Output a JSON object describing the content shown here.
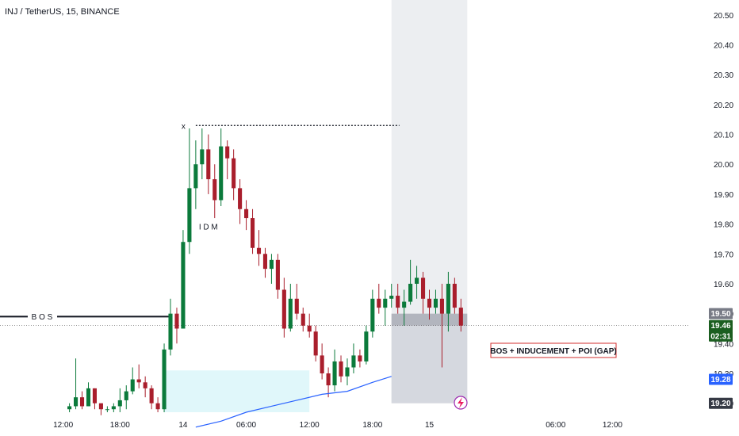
{
  "header": {
    "title": "INJ / TetherUS, 15, BINANCE"
  },
  "chart_data": {
    "type": "candlestick",
    "symbol": "INJ / TetherUS",
    "interval": "15",
    "exchange": "BINANCE",
    "ylim": [
      19.17,
      20.55
    ],
    "yticks": [
      "20.50",
      "20.40",
      "20.30",
      "20.20",
      "20.10",
      "20.00",
      "19.90",
      "19.80",
      "19.70",
      "19.60",
      "19.50",
      "19.40",
      "19.30",
      "19.20"
    ],
    "yticks_values": [
      20.5,
      20.4,
      20.3,
      20.2,
      20.1,
      20.0,
      19.9,
      19.8,
      19.7,
      19.6,
      19.5,
      19.4,
      19.3,
      19.2
    ],
    "xlim": [
      -11,
      98
    ],
    "xticks": [
      {
        "label": "12:00",
        "t": -1
      },
      {
        "label": "18:00",
        "t": 8
      },
      {
        "label": "14",
        "t": 18
      },
      {
        "label": "06:00",
        "t": 28
      },
      {
        "label": "12:00",
        "t": 38
      },
      {
        "label": "18:00",
        "t": 48
      },
      {
        "label": "15",
        "t": 57
      },
      {
        "label": "06:00",
        "t": 77
      },
      {
        "label": "12:00",
        "t": 86
      }
    ],
    "candles": [
      [
        19.18,
        19.2,
        19.17,
        19.19
      ],
      [
        19.19,
        19.35,
        19.18,
        19.22
      ],
      [
        19.22,
        19.24,
        19.18,
        19.19
      ],
      [
        19.19,
        19.27,
        19.19,
        19.25
      ],
      [
        19.25,
        19.25,
        19.18,
        19.2
      ],
      [
        19.2,
        19.2,
        19.16,
        19.18
      ],
      [
        19.18,
        19.19,
        19.17,
        19.18
      ],
      [
        19.18,
        19.2,
        19.17,
        19.19
      ],
      [
        19.19,
        19.25,
        19.17,
        19.21
      ],
      [
        19.21,
        19.26,
        19.18,
        19.24
      ],
      [
        19.24,
        19.32,
        19.23,
        19.28
      ],
      [
        19.28,
        19.33,
        19.25,
        19.27
      ],
      [
        19.27,
        19.29,
        19.22,
        19.25
      ],
      [
        19.25,
        19.26,
        19.18,
        19.2
      ],
      [
        19.2,
        19.22,
        19.17,
        19.18
      ],
      [
        19.18,
        19.4,
        19.17,
        19.38
      ],
      [
        19.38,
        19.55,
        19.36,
        19.5
      ],
      [
        19.5,
        19.52,
        19.4,
        19.45
      ],
      [
        19.45,
        19.78,
        19.45,
        19.74
      ],
      [
        19.74,
        20.12,
        19.7,
        19.92
      ],
      [
        19.92,
        20.08,
        19.85,
        20.0
      ],
      [
        20.0,
        20.12,
        19.95,
        20.05
      ],
      [
        20.05,
        20.1,
        19.9,
        19.95
      ],
      [
        19.95,
        20.0,
        19.82,
        19.88
      ],
      [
        19.88,
        20.12,
        19.86,
        20.06
      ],
      [
        20.06,
        20.08,
        19.95,
        20.02
      ],
      [
        20.02,
        20.05,
        19.88,
        19.92
      ],
      [
        19.92,
        19.95,
        19.8,
        19.85
      ],
      [
        19.85,
        19.88,
        19.78,
        19.82
      ],
      [
        19.82,
        19.85,
        19.7,
        19.72
      ],
      [
        19.72,
        19.78,
        19.66,
        19.7
      ],
      [
        19.7,
        19.72,
        19.62,
        19.65
      ],
      [
        19.65,
        19.7,
        19.6,
        19.68
      ],
      [
        19.68,
        19.7,
        19.55,
        19.58
      ],
      [
        19.58,
        19.62,
        19.42,
        19.45
      ],
      [
        19.45,
        19.6,
        19.44,
        19.55
      ],
      [
        19.55,
        19.6,
        19.48,
        19.5
      ],
      [
        19.5,
        19.52,
        19.44,
        19.46
      ],
      [
        19.46,
        19.5,
        19.42,
        19.44
      ],
      [
        19.44,
        19.46,
        19.34,
        19.36
      ],
      [
        19.36,
        19.4,
        19.28,
        19.3
      ],
      [
        19.3,
        19.32,
        19.22,
        19.26
      ],
      [
        19.26,
        19.38,
        19.24,
        19.34
      ],
      [
        19.34,
        19.36,
        19.27,
        19.29
      ],
      [
        19.29,
        19.35,
        19.26,
        19.32
      ],
      [
        19.32,
        19.4,
        19.3,
        19.36
      ],
      [
        19.36,
        19.38,
        19.32,
        19.34
      ],
      [
        19.34,
        19.46,
        19.33,
        19.44
      ],
      [
        19.44,
        19.58,
        19.42,
        19.55
      ],
      [
        19.55,
        19.6,
        19.5,
        19.52
      ],
      [
        19.52,
        19.58,
        19.46,
        19.55
      ],
      [
        19.55,
        19.6,
        19.52,
        19.56
      ],
      [
        19.56,
        19.6,
        19.5,
        19.52
      ],
      [
        19.52,
        19.58,
        19.46,
        19.54
      ],
      [
        19.54,
        19.68,
        19.53,
        19.6
      ],
      [
        19.6,
        19.66,
        19.55,
        19.62
      ],
      [
        19.62,
        19.64,
        19.5,
        19.55
      ],
      [
        19.55,
        19.58,
        19.48,
        19.52
      ],
      [
        19.52,
        19.58,
        19.5,
        19.55
      ],
      [
        19.55,
        19.6,
        19.32,
        19.5
      ],
      [
        19.5,
        19.64,
        19.44,
        19.6
      ],
      [
        19.6,
        19.62,
        19.5,
        19.52
      ],
      [
        19.52,
        19.55,
        19.44,
        19.46
      ]
    ],
    "candles_x_start": 0,
    "ma_line": {
      "color": "#2962ff",
      "points": [
        [
          20,
          19.12
        ],
        [
          24,
          19.14
        ],
        [
          28,
          19.17
        ],
        [
          32,
          19.19
        ],
        [
          36,
          19.21
        ],
        [
          40,
          19.23
        ],
        [
          44,
          19.24
        ],
        [
          48,
          19.27
        ],
        [
          51,
          19.29
        ]
      ]
    },
    "annotations": {
      "bos_label": "B O S",
      "bos_price": 19.49,
      "idm_label": "I D M",
      "idm_price": 19.79,
      "x_marker": "x",
      "swing_high_price": 20.13,
      "box_label": "BOS + INDUCEMENT + POI (GAP)"
    },
    "demand_zone": {
      "t0": 15,
      "t1": 38,
      "low": 19.17,
      "high": 19.31
    },
    "projection": {
      "t0": 51,
      "t1": 63,
      "top": 20.55,
      "bottom": 19.2,
      "entry_top": 19.5,
      "entry_bottom": 19.46
    },
    "price_tags": [
      {
        "label": "19.50",
        "price": 19.5,
        "bg": "#787b86"
      },
      {
        "label": "19.46",
        "price": 19.46,
        "bg": "#1b5e20"
      },
      {
        "label": "02:31",
        "price": 19.425,
        "bg": "#1b5e20"
      },
      {
        "label": "19.28",
        "price": 19.28,
        "bg": "#2962ff"
      },
      {
        "label": "19.20",
        "price": 19.2,
        "bg": "#363a45"
      }
    ],
    "last_price": 19.46,
    "colors": {
      "up": "#0b7a3b",
      "down": "#a91e2c",
      "zone": "#e0f7fa",
      "projection": "#eceef1",
      "entry": "#b2b5be"
    }
  }
}
